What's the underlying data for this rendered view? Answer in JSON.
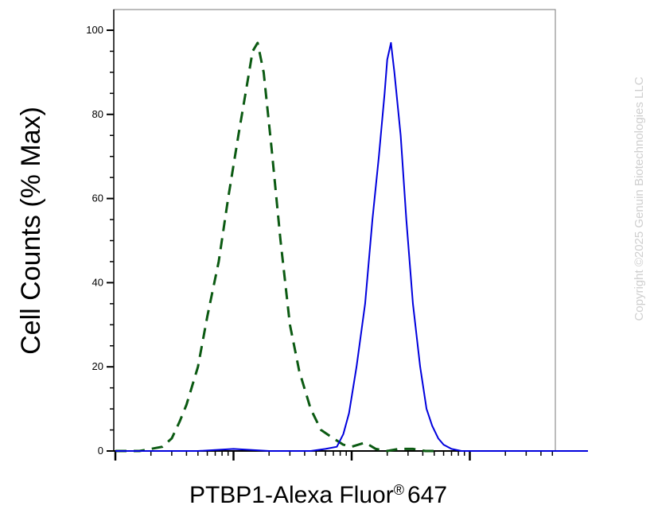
{
  "chart_data": {
    "type": "line",
    "title": "",
    "xlabel": "PTBP1-Alexa Fluor",
    "xlabel_superscript": "®",
    "xlabel_suffix": "647",
    "ylabel": "Cell Counts (% Max)",
    "x_scale": "log",
    "ylim": [
      0,
      105
    ],
    "yticks": [
      0,
      20,
      40,
      60,
      80,
      100
    ],
    "ytick_labels": [
      "0",
      "20",
      "40",
      "60",
      "80",
      "100"
    ],
    "grid": false,
    "series": [
      {
        "style": "dashed",
        "color": "#0b5a12",
        "x": [
          1.0,
          1.6,
          2.0,
          2.5,
          3.0,
          3.5,
          4.0,
          5.0,
          6.0,
          7.5,
          9.0,
          11.0,
          13.0,
          14.5,
          16.0,
          18.0,
          21.0,
          25.0,
          30.0,
          36.0,
          45.0,
          55.0,
          70.0,
          85.0,
          100.0,
          130.0,
          160.0,
          200.0,
          250.0,
          330.0,
          420.0,
          500.0
        ],
        "y": [
          0,
          0,
          0.5,
          1,
          3,
          7,
          11,
          20,
          32,
          45,
          60,
          75,
          87,
          95,
          97,
          90,
          72,
          50,
          30,
          19,
          10,
          5,
          3,
          1.5,
          1,
          2,
          0.5,
          0,
          0.5,
          0.5,
          0,
          0
        ]
      },
      {
        "style": "solid",
        "color": "#0000dd",
        "x": [
          1.0,
          5.0,
          10.0,
          20.0,
          30.0,
          45.0,
          60.0,
          75.0,
          85.0,
          95.0,
          110.0,
          130.0,
          150.0,
          170.0,
          190.0,
          200.0,
          215.0,
          230.0,
          260.0,
          290.0,
          330.0,
          380.0,
          430.0,
          480.0,
          540.0,
          600.0,
          700.0,
          850.0,
          1000.0,
          1500.0,
          3000.0,
          10000.0
        ],
        "y": [
          0,
          0,
          0.5,
          0,
          0,
          0,
          0.5,
          1,
          4,
          9,
          20,
          35,
          55,
          70,
          85,
          93,
          97,
          90,
          75,
          55,
          35,
          20,
          10,
          6,
          3,
          1.5,
          0.5,
          0,
          0,
          0,
          0,
          0
        ]
      }
    ]
  },
  "watermark": "Copyright ©2025 Genuin Biotechnologies LLC"
}
